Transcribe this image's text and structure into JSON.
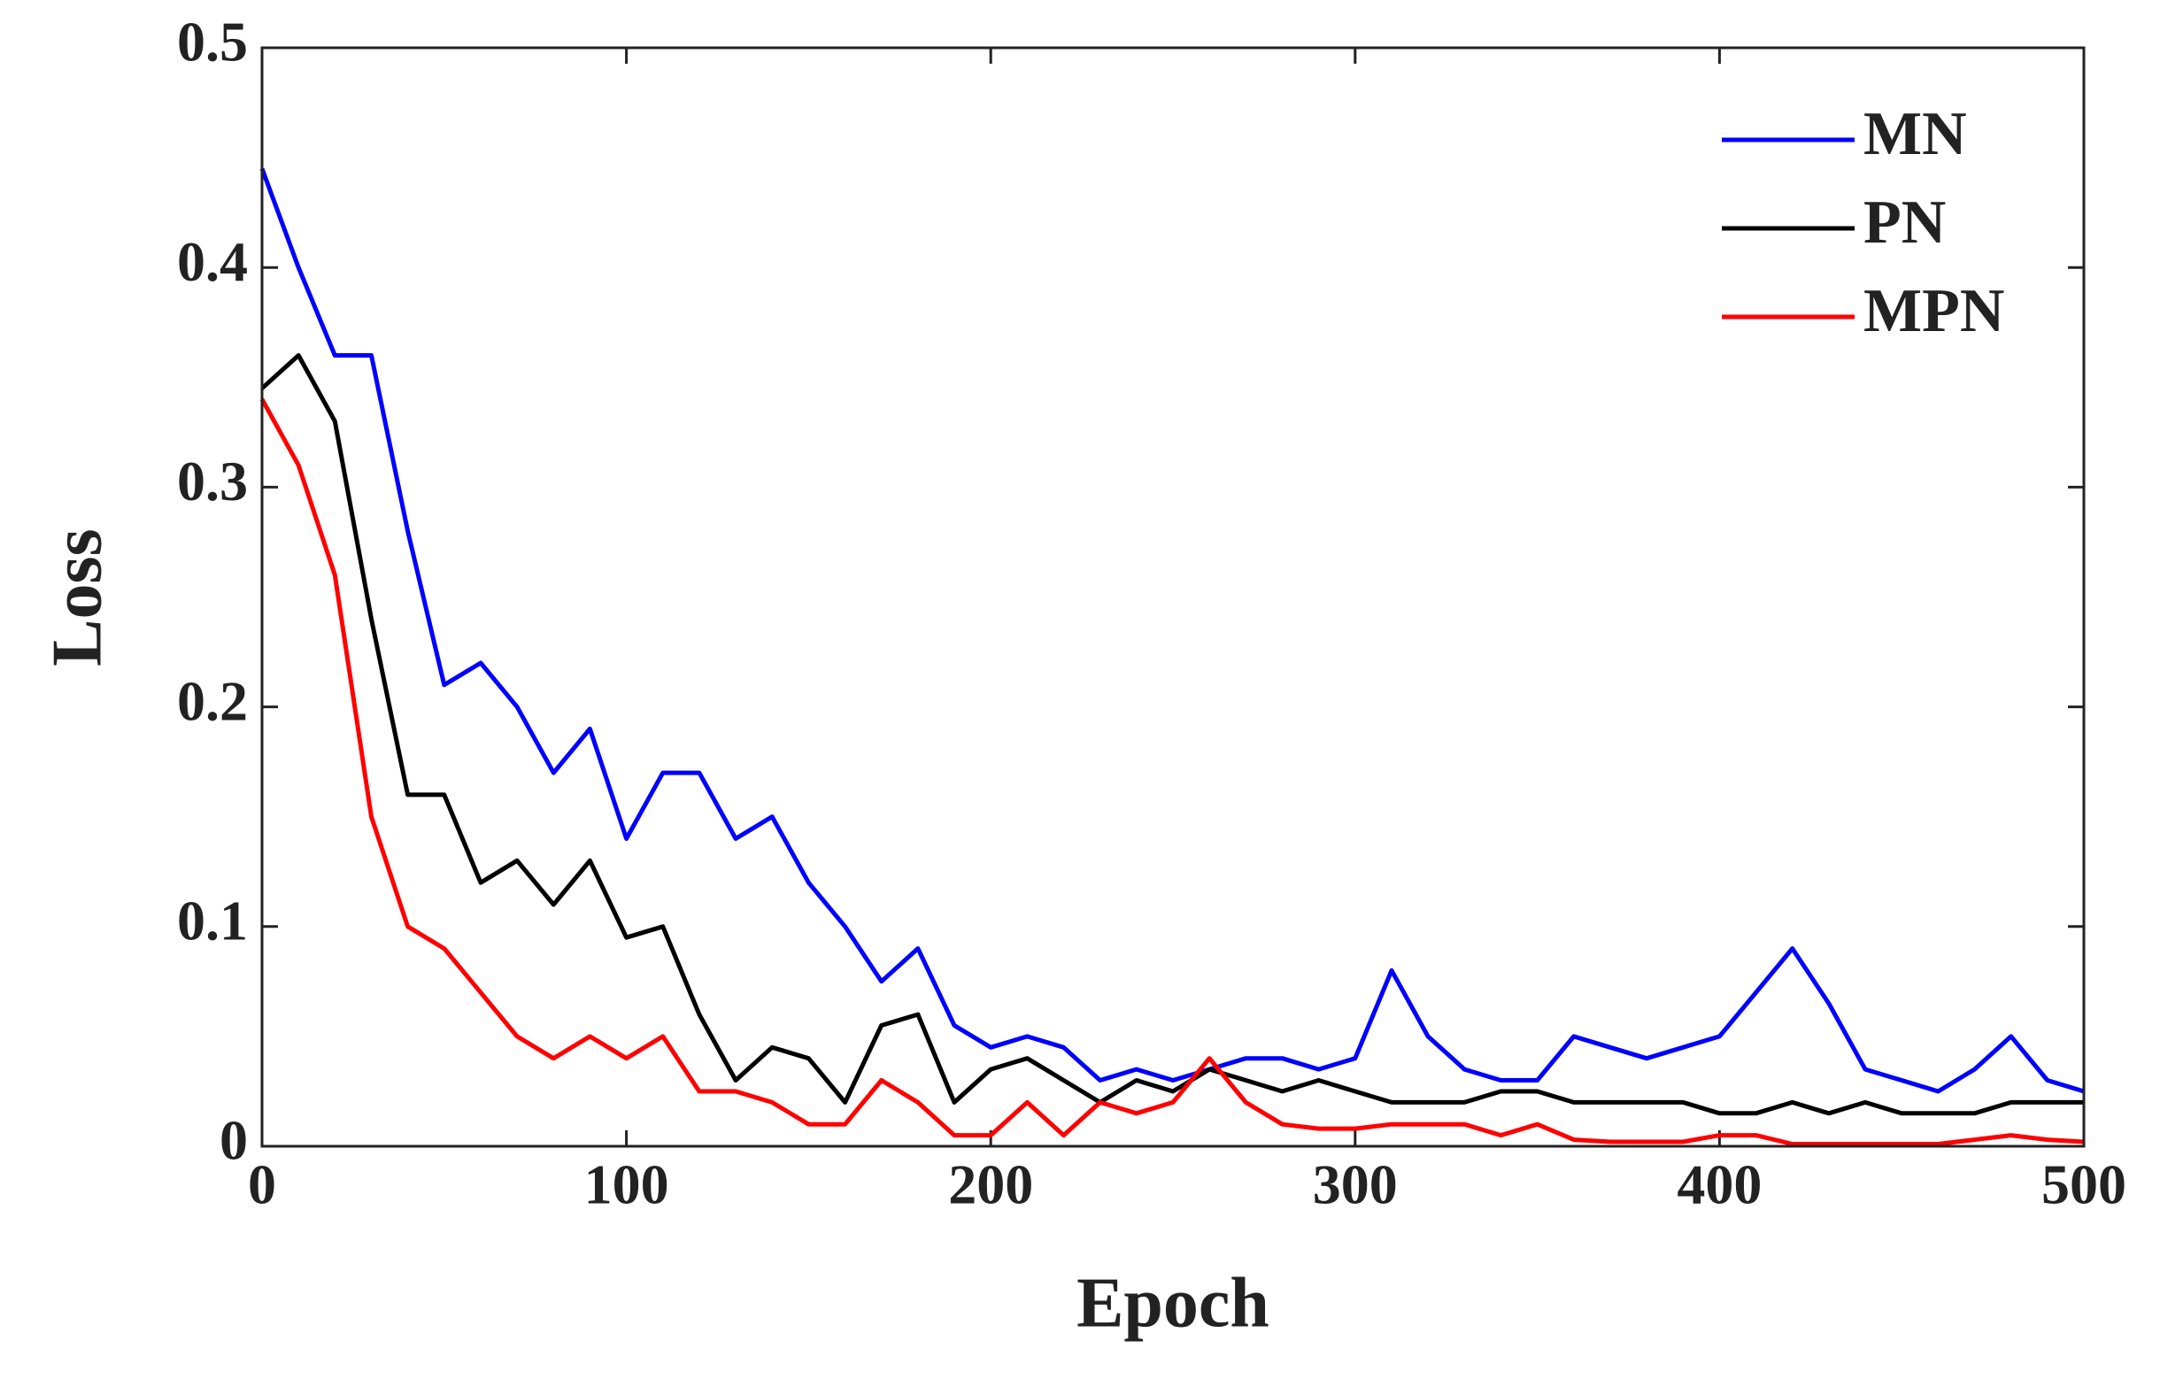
{
  "chart_data": {
    "type": "line",
    "x_label": "Epoch",
    "y_label": "Loss",
    "x": [
      0,
      10,
      20,
      30,
      40,
      50,
      60,
      70,
      80,
      90,
      100,
      110,
      120,
      130,
      140,
      150,
      160,
      170,
      180,
      190,
      200,
      210,
      220,
      230,
      240,
      250,
      260,
      270,
      280,
      290,
      300,
      310,
      320,
      330,
      340,
      350,
      360,
      370,
      380,
      390,
      400,
      410,
      420,
      430,
      440,
      450,
      460,
      470,
      480,
      490,
      500
    ],
    "series": [
      {
        "name": "MN",
        "color": "#0000ff",
        "values": [
          0.445,
          0.4,
          0.36,
          0.36,
          0.28,
          0.21,
          0.22,
          0.2,
          0.17,
          0.19,
          0.14,
          0.17,
          0.17,
          0.14,
          0.15,
          0.12,
          0.1,
          0.075,
          0.09,
          0.055,
          0.045,
          0.05,
          0.045,
          0.03,
          0.035,
          0.03,
          0.035,
          0.04,
          0.04,
          0.035,
          0.04,
          0.08,
          0.05,
          0.035,
          0.03,
          0.03,
          0.05,
          0.045,
          0.04,
          0.045,
          0.05,
          0.07,
          0.09,
          0.065,
          0.035,
          0.03,
          0.025,
          0.035,
          0.05,
          0.03,
          0.025
        ]
      },
      {
        "name": "PN",
        "color": "#000000",
        "values": [
          0.345,
          0.36,
          0.33,
          0.24,
          0.16,
          0.16,
          0.12,
          0.13,
          0.11,
          0.13,
          0.095,
          0.1,
          0.06,
          0.03,
          0.045,
          0.04,
          0.02,
          0.055,
          0.06,
          0.02,
          0.035,
          0.04,
          0.03,
          0.02,
          0.03,
          0.025,
          0.035,
          0.03,
          0.025,
          0.03,
          0.025,
          0.02,
          0.02,
          0.02,
          0.025,
          0.025,
          0.02,
          0.02,
          0.02,
          0.02,
          0.015,
          0.015,
          0.02,
          0.015,
          0.02,
          0.015,
          0.015,
          0.015,
          0.02,
          0.02,
          0.02
        ]
      },
      {
        "name": "MPN",
        "color": "#ff0000",
        "values": [
          0.34,
          0.31,
          0.26,
          0.15,
          0.1,
          0.09,
          0.07,
          0.05,
          0.04,
          0.05,
          0.04,
          0.05,
          0.025,
          0.025,
          0.02,
          0.01,
          0.01,
          0.03,
          0.02,
          0.005,
          0.005,
          0.02,
          0.005,
          0.02,
          0.015,
          0.02,
          0.04,
          0.02,
          0.01,
          0.008,
          0.008,
          0.01,
          0.01,
          0.01,
          0.005,
          0.01,
          0.003,
          0.002,
          0.002,
          0.002,
          0.005,
          0.005,
          0.001,
          0.001,
          0.001,
          0.001,
          0.001,
          0.003,
          0.005,
          0.003,
          0.002
        ]
      }
    ],
    "xlim": [
      0,
      500
    ],
    "ylim": [
      0,
      0.5
    ],
    "xticks": [
      0,
      100,
      200,
      300,
      400,
      500
    ],
    "yticks": [
      0,
      0.1,
      0.2,
      0.3,
      0.4,
      0.5
    ],
    "grid": false,
    "legend_position": "upper right"
  }
}
